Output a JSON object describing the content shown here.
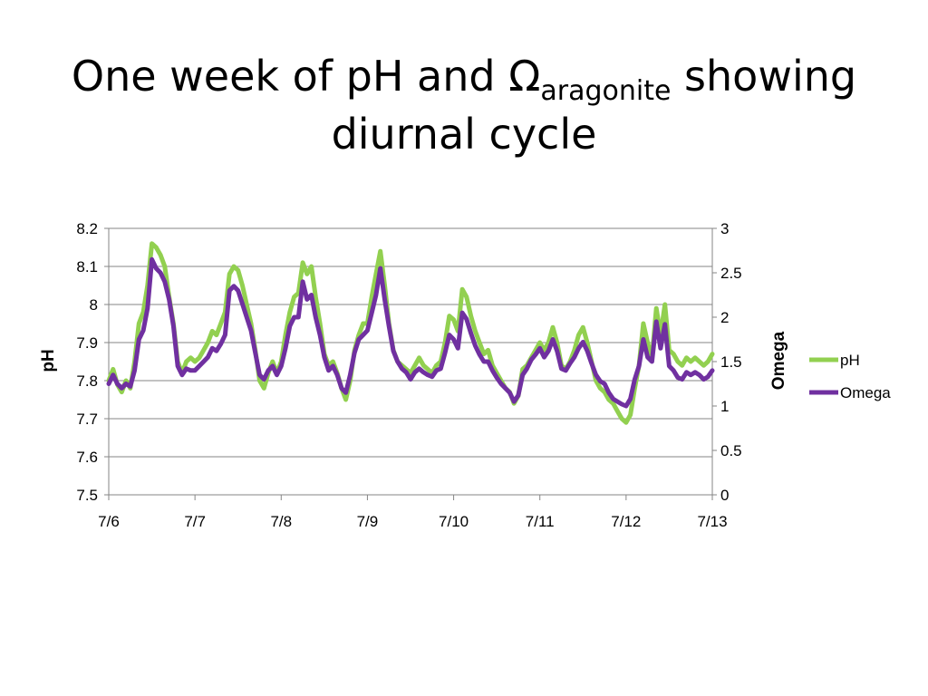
{
  "title": {
    "line1_prefix": "One week of pH and Ω",
    "line1_sub": "aragonite",
    "line1_suffix": " showing",
    "line2": "diurnal cycle"
  },
  "chart_data": {
    "type": "line",
    "x_tick_labels": [
      "7/6",
      "7/7",
      "7/8",
      "7/9",
      "7/10",
      "7/11",
      "7/12",
      "7/13"
    ],
    "xlim": [
      0,
      7
    ],
    "xlabel": "",
    "ylabel_left": "pH",
    "ylim_left": [
      7.5,
      8.2
    ],
    "yticks_left": [
      "7.5",
      "7.6",
      "7.7",
      "7.8",
      "7.9",
      "8",
      "8.1",
      "8.2"
    ],
    "ylabel_right": "Omega",
    "ylim_right": [
      0,
      3
    ],
    "yticks_right": [
      "0",
      "0.5",
      "1",
      "1.5",
      "2",
      "2.5",
      "3"
    ],
    "grid": "horizontal",
    "legend": "right",
    "series": [
      {
        "name": "pH",
        "axis": "left",
        "color": "#92d050",
        "x": [
          0,
          0.05,
          0.1,
          0.15,
          0.2,
          0.25,
          0.3,
          0.35,
          0.4,
          0.45,
          0.5,
          0.55,
          0.6,
          0.65,
          0.7,
          0.75,
          0.8,
          0.85,
          0.9,
          0.95,
          1.0,
          1.05,
          1.1,
          1.15,
          1.2,
          1.25,
          1.3,
          1.35,
          1.4,
          1.45,
          1.5,
          1.55,
          1.6,
          1.65,
          1.7,
          1.75,
          1.8,
          1.85,
          1.9,
          1.95,
          2.0,
          2.05,
          2.1,
          2.15,
          2.2,
          2.25,
          2.3,
          2.35,
          2.4,
          2.45,
          2.5,
          2.55,
          2.6,
          2.65,
          2.7,
          2.75,
          2.8,
          2.85,
          2.9,
          2.95,
          3.0,
          3.05,
          3.1,
          3.15,
          3.2,
          3.25,
          3.3,
          3.35,
          3.4,
          3.45,
          3.5,
          3.55,
          3.6,
          3.65,
          3.7,
          3.75,
          3.8,
          3.85,
          3.9,
          3.95,
          4.0,
          4.05,
          4.1,
          4.15,
          4.2,
          4.25,
          4.3,
          4.35,
          4.4,
          4.45,
          4.5,
          4.55,
          4.6,
          4.65,
          4.7,
          4.75,
          4.8,
          4.85,
          4.9,
          4.95,
          5.0,
          5.05,
          5.1,
          5.15,
          5.2,
          5.25,
          5.3,
          5.35,
          5.4,
          5.45,
          5.5,
          5.55,
          5.6,
          5.65,
          5.7,
          5.75,
          5.8,
          5.85,
          5.9,
          5.95,
          6.0,
          6.05,
          6.1,
          6.15,
          6.2,
          6.25,
          6.3,
          6.35,
          6.4,
          6.45,
          6.5,
          6.55,
          6.6,
          6.65,
          6.7,
          6.75,
          6.8,
          6.85,
          6.9,
          6.95,
          7.0
        ],
        "y": [
          7.8,
          7.83,
          7.79,
          7.77,
          7.8,
          7.78,
          7.85,
          7.95,
          7.98,
          8.05,
          8.16,
          8.15,
          8.13,
          8.1,
          8.02,
          7.95,
          7.85,
          7.82,
          7.85,
          7.86,
          7.85,
          7.86,
          7.88,
          7.9,
          7.93,
          7.92,
          7.95,
          7.98,
          8.08,
          8.1,
          8.09,
          8.05,
          8.0,
          7.95,
          7.88,
          7.8,
          7.78,
          7.82,
          7.85,
          7.82,
          7.85,
          7.92,
          7.98,
          8.02,
          8.03,
          8.11,
          8.08,
          8.1,
          8.02,
          7.95,
          7.87,
          7.84,
          7.85,
          7.82,
          7.78,
          7.75,
          7.8,
          7.88,
          7.92,
          7.95,
          7.95,
          8.02,
          8.08,
          8.14,
          8.05,
          7.95,
          7.88,
          7.85,
          7.84,
          7.83,
          7.82,
          7.84,
          7.86,
          7.84,
          7.83,
          7.82,
          7.84,
          7.85,
          7.9,
          7.97,
          7.96,
          7.93,
          8.04,
          8.02,
          7.97,
          7.93,
          7.9,
          7.87,
          7.88,
          7.84,
          7.82,
          7.8,
          7.78,
          7.77,
          7.74,
          7.76,
          7.83,
          7.84,
          7.86,
          7.88,
          7.9,
          7.88,
          7.9,
          7.94,
          7.9,
          7.84,
          7.83,
          7.85,
          7.88,
          7.92,
          7.94,
          7.9,
          7.85,
          7.8,
          7.78,
          7.77,
          7.75,
          7.74,
          7.72,
          7.7,
          7.69,
          7.71,
          7.78,
          7.84,
          7.95,
          7.9,
          7.86,
          7.99,
          7.92,
          8.0,
          7.88,
          7.87,
          7.85,
          7.84,
          7.86,
          7.85,
          7.86,
          7.85,
          7.84,
          7.85,
          7.87
        ]
      },
      {
        "name": "Omega",
        "axis": "right",
        "color": "#7030a0",
        "x": [
          0,
          0.05,
          0.1,
          0.15,
          0.2,
          0.25,
          0.3,
          0.35,
          0.4,
          0.45,
          0.5,
          0.55,
          0.6,
          0.65,
          0.7,
          0.75,
          0.8,
          0.85,
          0.9,
          0.95,
          1.0,
          1.05,
          1.1,
          1.15,
          1.2,
          1.25,
          1.3,
          1.35,
          1.4,
          1.45,
          1.5,
          1.55,
          1.6,
          1.65,
          1.7,
          1.75,
          1.8,
          1.85,
          1.9,
          1.95,
          2.0,
          2.05,
          2.1,
          2.15,
          2.2,
          2.25,
          2.3,
          2.35,
          2.4,
          2.45,
          2.5,
          2.55,
          2.6,
          2.65,
          2.7,
          2.75,
          2.8,
          2.85,
          2.9,
          2.95,
          3.0,
          3.05,
          3.1,
          3.15,
          3.2,
          3.25,
          3.3,
          3.35,
          3.4,
          3.45,
          3.5,
          3.55,
          3.6,
          3.65,
          3.7,
          3.75,
          3.8,
          3.85,
          3.9,
          3.95,
          4.0,
          4.05,
          4.1,
          4.15,
          4.2,
          4.25,
          4.3,
          4.35,
          4.4,
          4.45,
          4.5,
          4.55,
          4.6,
          4.65,
          4.7,
          4.75,
          4.8,
          4.85,
          4.9,
          4.95,
          5.0,
          5.05,
          5.1,
          5.15,
          5.2,
          5.25,
          5.3,
          5.35,
          5.4,
          5.45,
          5.5,
          5.55,
          5.6,
          5.65,
          5.7,
          5.75,
          5.8,
          5.85,
          5.9,
          5.95,
          6.0,
          6.05,
          6.1,
          6.15,
          6.2,
          6.25,
          6.3,
          6.35,
          6.4,
          6.45,
          6.5,
          6.55,
          6.6,
          6.65,
          6.7,
          6.75,
          6.8,
          6.85,
          6.9,
          6.95,
          7.0
        ],
        "y": [
          1.25,
          1.35,
          1.25,
          1.2,
          1.25,
          1.22,
          1.4,
          1.75,
          1.85,
          2.1,
          2.65,
          2.55,
          2.5,
          2.4,
          2.2,
          1.9,
          1.45,
          1.35,
          1.42,
          1.4,
          1.4,
          1.45,
          1.5,
          1.55,
          1.65,
          1.62,
          1.7,
          1.8,
          2.3,
          2.35,
          2.3,
          2.15,
          2.0,
          1.85,
          1.6,
          1.35,
          1.3,
          1.4,
          1.45,
          1.35,
          1.45,
          1.65,
          1.9,
          2.0,
          2.0,
          2.4,
          2.2,
          2.25,
          2.0,
          1.8,
          1.55,
          1.4,
          1.45,
          1.35,
          1.2,
          1.15,
          1.35,
          1.6,
          1.75,
          1.8,
          1.85,
          2.05,
          2.25,
          2.55,
          2.2,
          1.9,
          1.62,
          1.5,
          1.42,
          1.38,
          1.3,
          1.38,
          1.42,
          1.38,
          1.35,
          1.33,
          1.4,
          1.42,
          1.6,
          1.8,
          1.75,
          1.65,
          2.05,
          1.98,
          1.82,
          1.68,
          1.58,
          1.5,
          1.5,
          1.4,
          1.32,
          1.25,
          1.2,
          1.15,
          1.05,
          1.12,
          1.35,
          1.42,
          1.52,
          1.58,
          1.65,
          1.55,
          1.62,
          1.75,
          1.62,
          1.42,
          1.4,
          1.48,
          1.55,
          1.65,
          1.72,
          1.62,
          1.48,
          1.35,
          1.28,
          1.25,
          1.15,
          1.08,
          1.05,
          1.02,
          1.0,
          1.08,
          1.3,
          1.45,
          1.75,
          1.55,
          1.5,
          1.95,
          1.65,
          1.92,
          1.45,
          1.4,
          1.32,
          1.3,
          1.38,
          1.35,
          1.38,
          1.35,
          1.3,
          1.33,
          1.4
        ]
      }
    ]
  }
}
